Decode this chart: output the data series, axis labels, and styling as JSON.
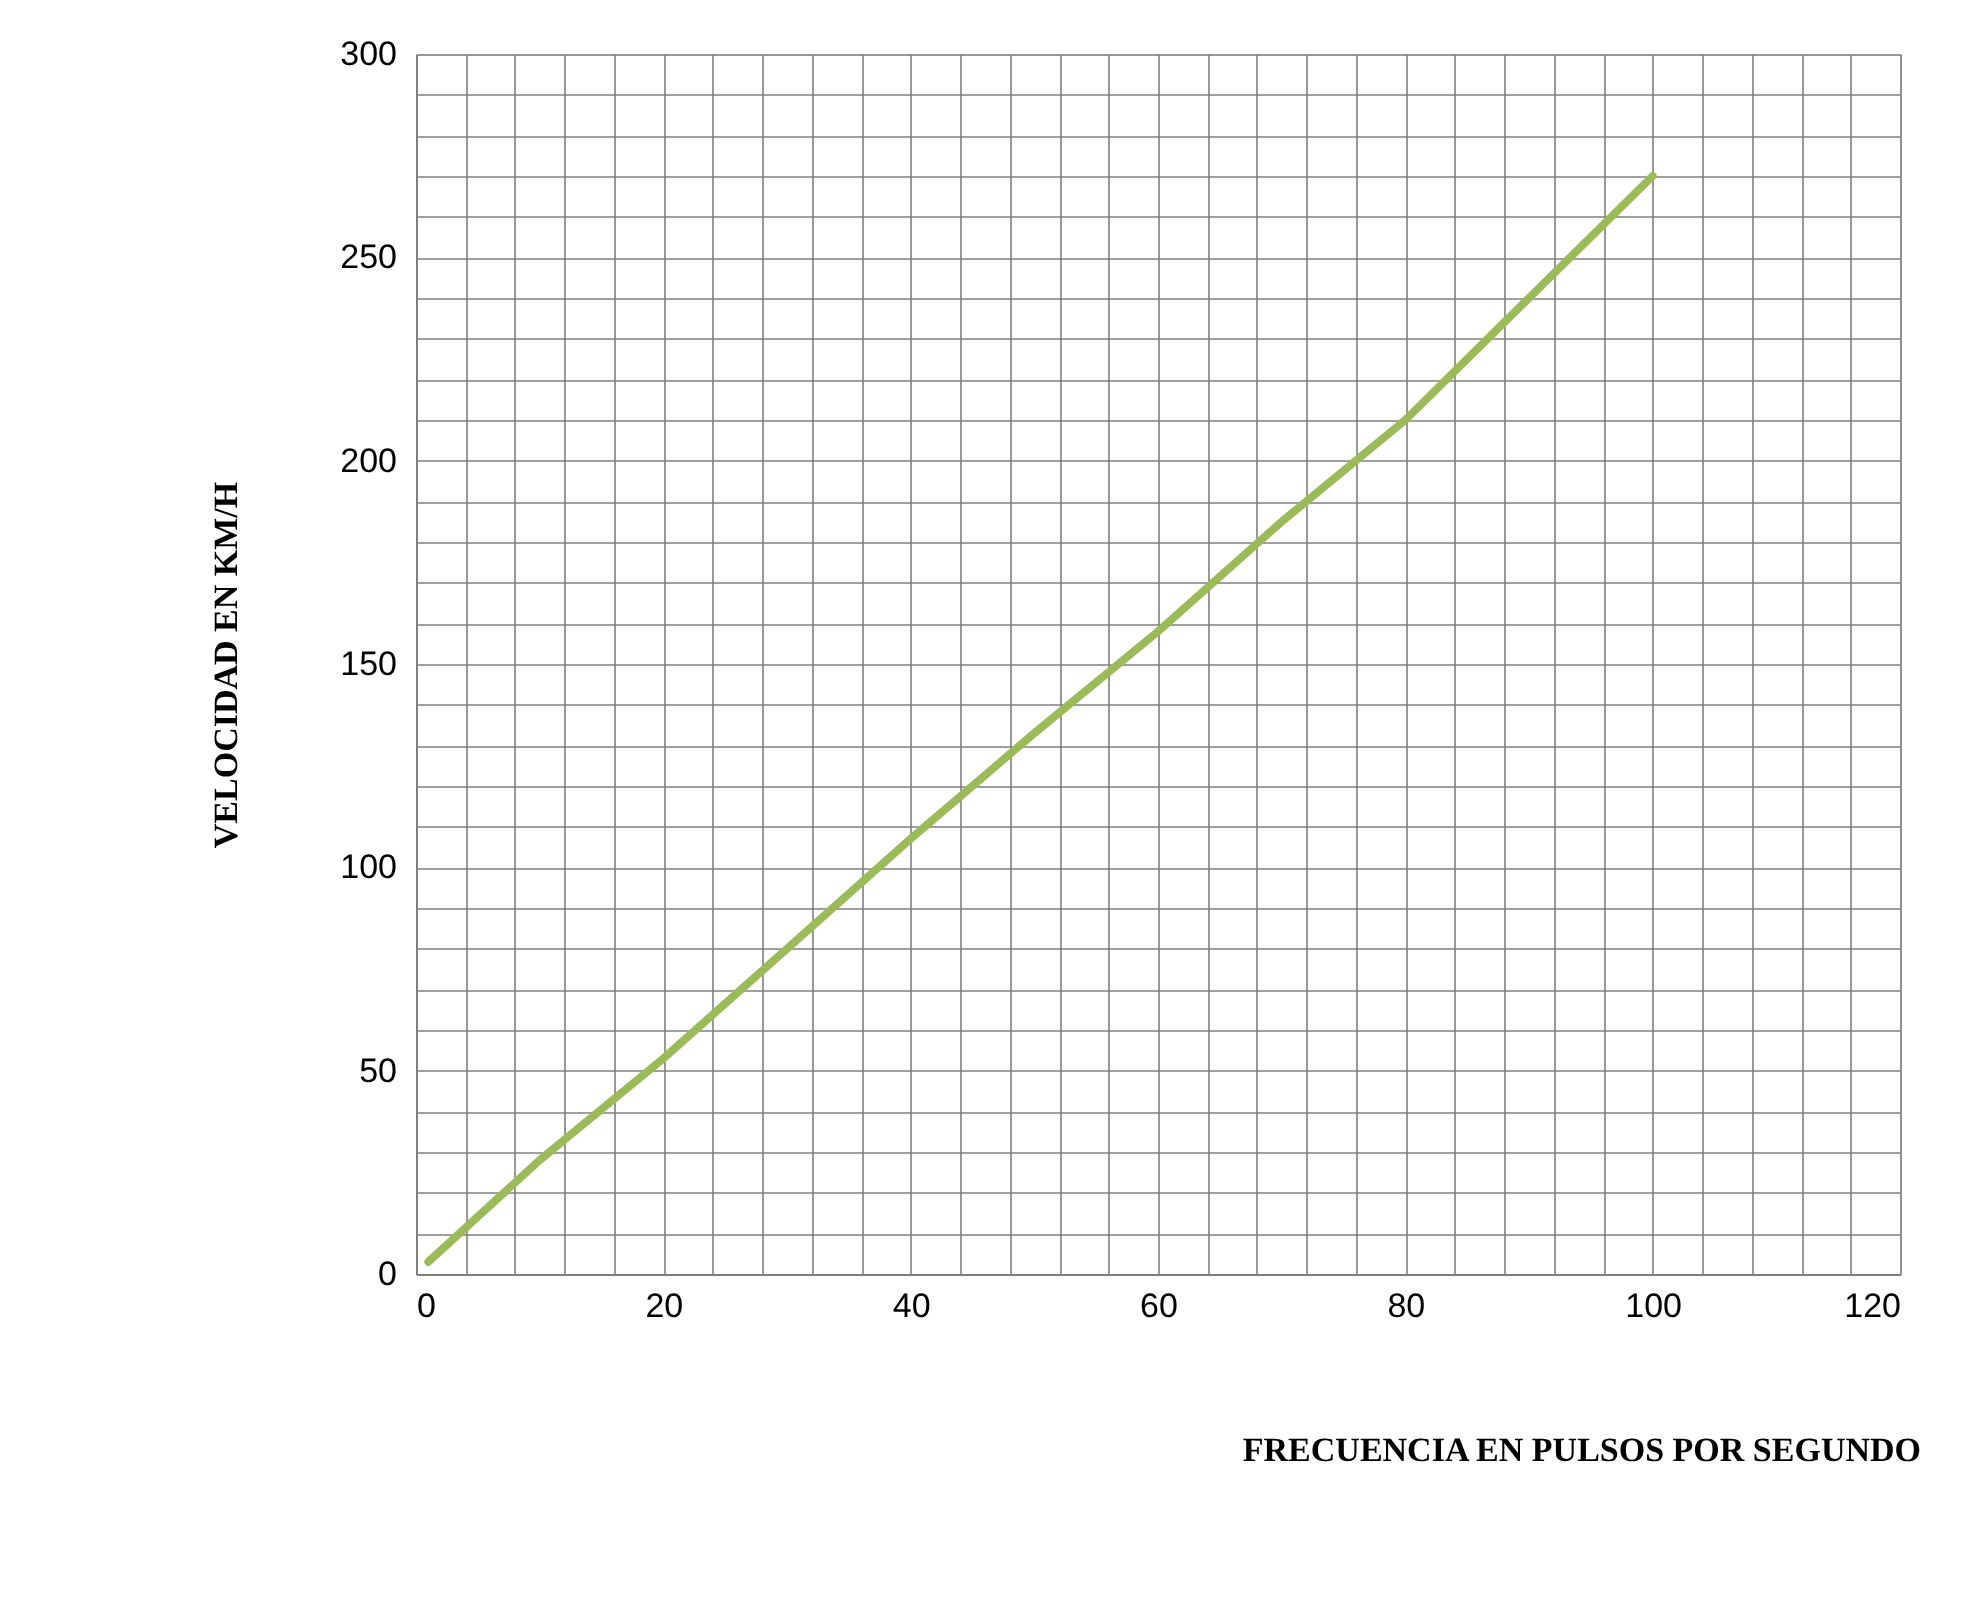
{
  "chart_data": {
    "type": "line",
    "xlabel": "FRECUENCIA EN PULSOS POR SEGUNDO",
    "ylabel": "VELOCIDAD EN KM/H",
    "x": [
      1,
      10,
      20,
      30,
      40,
      50,
      60,
      70,
      80,
      90,
      100
    ],
    "series": [
      {
        "color": "#9bbb59",
        "values": [
          3,
          28,
          53,
          80,
          107,
          133,
          158,
          185,
          210,
          240,
          270
        ]
      }
    ],
    "xlim": [
      0,
      120
    ],
    "ylim": [
      0,
      300
    ],
    "xticks": [
      0,
      {
        "value": 4,
        "label": null
      },
      {
        "value": 8,
        "label": null
      },
      {
        "value": 12,
        "label": null
      },
      {
        "value": 16,
        "label": null
      },
      20,
      {
        "value": 24,
        "label": null
      },
      {
        "value": 28,
        "label": null
      },
      {
        "value": 32,
        "label": null
      },
      {
        "value": 36,
        "label": null
      },
      40,
      {
        "value": 44,
        "label": null
      },
      {
        "value": 48,
        "label": null
      },
      {
        "value": 52,
        "label": null
      },
      {
        "value": 56,
        "label": null
      },
      60,
      {
        "value": 64,
        "label": null
      },
      {
        "value": 68,
        "label": null
      },
      {
        "value": 72,
        "label": null
      },
      {
        "value": 76,
        "label": null
      },
      80,
      {
        "value": 84,
        "label": null
      },
      {
        "value": 88,
        "label": null
      },
      {
        "value": 92,
        "label": null
      },
      {
        "value": 96,
        "label": null
      },
      100,
      {
        "value": 104,
        "label": null
      },
      {
        "value": 108,
        "label": null
      },
      {
        "value": 112,
        "label": null
      },
      {
        "value": 116,
        "label": null
      },
      120
    ],
    "yticks": [
      0,
      {
        "value": 10,
        "label": null
      },
      {
        "value": 20,
        "label": null
      },
      {
        "value": 30,
        "label": null
      },
      {
        "value": 40,
        "label": null
      },
      50,
      {
        "value": 60,
        "label": null
      },
      {
        "value": 70,
        "label": null
      },
      {
        "value": 80,
        "label": null
      },
      {
        "value": 90,
        "label": null
      },
      100,
      {
        "value": 110,
        "label": null
      },
      {
        "value": 120,
        "label": null
      },
      {
        "value": 130,
        "label": null
      },
      {
        "value": 140,
        "label": null
      },
      150,
      {
        "value": 160,
        "label": null
      },
      {
        "value": 170,
        "label": null
      },
      {
        "value": 180,
        "label": null
      },
      {
        "value": 190,
        "label": null
      },
      200,
      {
        "value": 210,
        "label": null
      },
      {
        "value": 220,
        "label": null
      },
      {
        "value": 230,
        "label": null
      },
      {
        "value": 240,
        "label": null
      },
      250,
      {
        "value": 260,
        "label": null
      },
      {
        "value": 270,
        "label": null
      },
      {
        "value": 280,
        "label": null
      },
      {
        "value": 290,
        "label": null
      },
      300
    ],
    "grid": true,
    "marker": "none",
    "line_style": "solid"
  }
}
